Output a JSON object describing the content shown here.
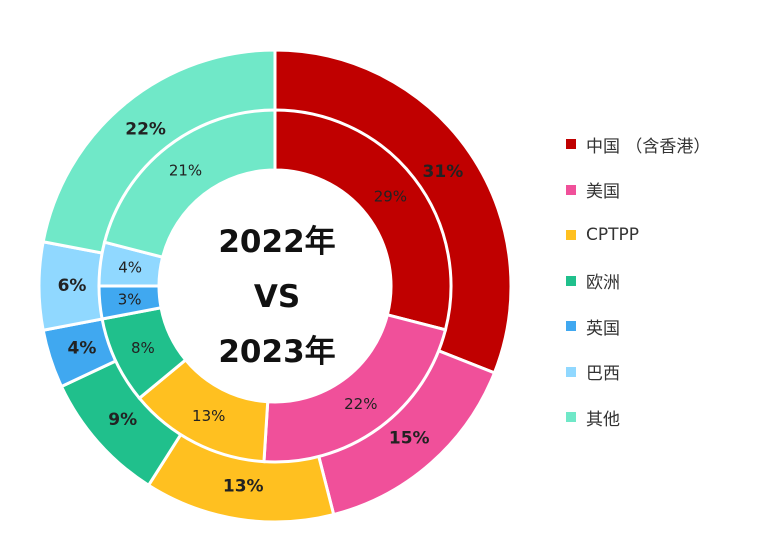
{
  "chart_data": {
    "type": "pie",
    "subtype": "nested-donut",
    "center_text": [
      "2022年",
      "VS",
      "2023年"
    ],
    "categories": [
      "中国 （含香港）",
      "美国",
      "CPTPP",
      "欧洲",
      "英国",
      "巴西",
      "其他"
    ],
    "colors": [
      "#C00000",
      "#F0509A",
      "#FFC020",
      "#20C08C",
      "#40A8F0",
      "#90D8FF",
      "#70E8C8"
    ],
    "series": [
      {
        "ring": "inner",
        "values": [
          29,
          22,
          13,
          8,
          3,
          4,
          21
        ],
        "labels": [
          "29%",
          "22%",
          "13%",
          "8%",
          "3%",
          "4%",
          "21%"
        ]
      },
      {
        "ring": "outer",
        "values": [
          31,
          15,
          13,
          9,
          4,
          6,
          22
        ],
        "labels": [
          "31%",
          "15%",
          "13%",
          "9%",
          "4%",
          "6%",
          "22%"
        ]
      }
    ],
    "legend_position": "right"
  }
}
